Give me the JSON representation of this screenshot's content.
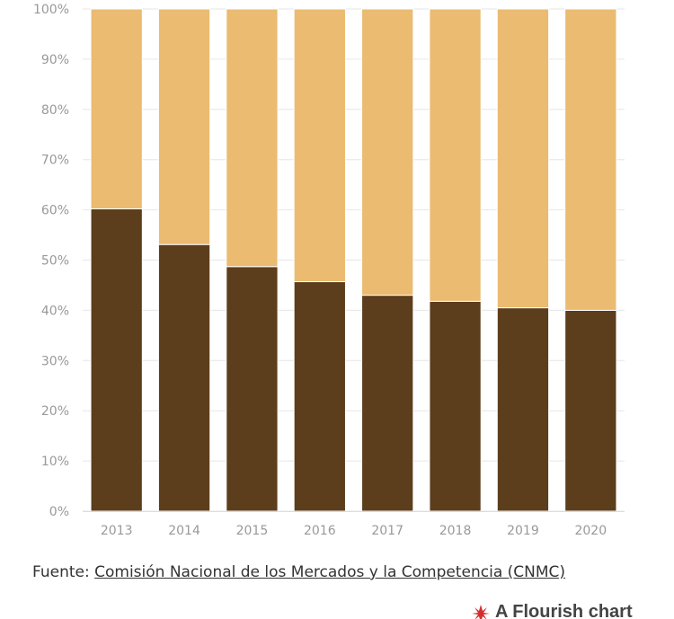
{
  "chart_data": {
    "type": "bar",
    "stacked": true,
    "normalized": true,
    "categories": [
      "2013",
      "2014",
      "2015",
      "2016",
      "2017",
      "2018",
      "2019",
      "2020"
    ],
    "series": [
      {
        "color": "#5c3d1c",
        "values": [
          60.2,
          53.1,
          48.7,
          45.7,
          43.0,
          41.8,
          40.5,
          40.0
        ]
      },
      {
        "color": "#eabb70",
        "values": [
          39.8,
          46.9,
          51.3,
          54.3,
          57.0,
          58.2,
          59.5,
          60.0
        ]
      }
    ],
    "y_ticks": [
      "0%",
      "10%",
      "20%",
      "30%",
      "40%",
      "50%",
      "60%",
      "70%",
      "80%",
      "90%",
      "100%"
    ],
    "ylim": [
      0,
      100
    ],
    "grid": true,
    "legend": "none"
  },
  "source": {
    "prefix": "Fuente: ",
    "link_text": "Comisión Nacional de los Mercados y la Competencia (CNMC)"
  },
  "credit": {
    "label": "A Flourish chart",
    "icon": "flourish-logo-icon"
  }
}
